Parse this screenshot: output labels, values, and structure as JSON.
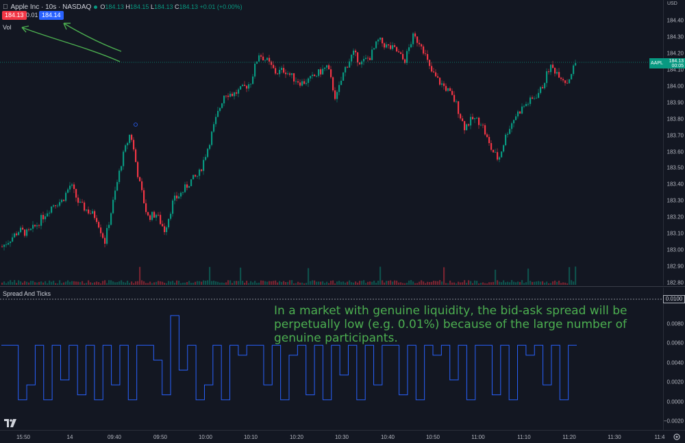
{
  "legend": {
    "symbol": "Apple Inc · 10s · NASDAQ",
    "open_label": "O",
    "open": "184.13",
    "high_label": "H",
    "high": "184.15",
    "low_label": "L",
    "low": "184.13",
    "close_label": "C",
    "close": "184.13",
    "change": "+0.01 (+0.00%)"
  },
  "bid_price": "184.13",
  "ask_price": "184.14",
  "spread_value": "0.01",
  "volume_label": "Vol",
  "indicator_title": "Spread And Ticks",
  "currency": "USD",
  "price_tag": {
    "symbol": "AAPL",
    "price": "184.13",
    "countdown": "00:05"
  },
  "spread_tag": "0.0100",
  "annotation": "In a market with genuine liquidity, the bid-ask spread will be perpetually low (e.g. 0.01%) because of the large number of genuine participants.",
  "price_axis": [
    "184.40",
    "184.30",
    "184.20",
    "184.10",
    "184.00",
    "183.90",
    "183.80",
    "183.70",
    "183.60",
    "183.50",
    "183.40",
    "183.30",
    "183.20",
    "183.10",
    "183.00",
    "182.90",
    "182.80"
  ],
  "spread_axis": [
    "0.0100",
    "0.0080",
    "0.0060",
    "0.0040",
    "0.0020",
    "0.0000",
    "−0.0020"
  ],
  "time_axis": [
    "15:50",
    "14",
    "09:40",
    "09:50",
    "10:00",
    "10:10",
    "10:20",
    "10:30",
    "10:40",
    "10:50",
    "11:00",
    "11:10",
    "11:20",
    "11:30",
    "11:4"
  ],
  "colors": {
    "up": "#089981",
    "down": "#f23645",
    "spread_line": "#2962ff",
    "annotation": "#4caf50",
    "arrow": "#4caf50",
    "background": "#131722"
  },
  "chart_data": {
    "type": "candlestick",
    "ylim": [
      182.8,
      184.4
    ],
    "price_path": [
      183.02,
      183.07,
      183.12,
      183.1,
      183.15,
      183.22,
      183.28,
      183.3,
      183.4,
      183.28,
      183.24,
      183.2,
      183.05,
      183.3,
      183.55,
      183.72,
      183.42,
      183.2,
      183.22,
      183.12,
      183.3,
      183.35,
      183.42,
      183.46,
      183.62,
      183.8,
      183.96,
      183.95,
      183.98,
      184.02,
      184.2,
      184.15,
      184.08,
      184.1,
      184.05,
      184.02,
      184.04,
      184.08,
      184.12,
      183.92,
      184.1,
      184.2,
      184.14,
      184.18,
      184.28,
      184.24,
      184.22,
      184.15,
      184.3,
      184.26,
      184.1,
      184.03,
      183.98,
      183.9,
      183.75,
      183.8,
      183.78,
      183.63,
      183.55,
      183.72,
      183.82,
      183.88,
      183.92,
      183.98,
      184.12,
      184.08,
      184.02,
      184.14
    ],
    "spread_levels": [
      0.0055,
      0.0055,
      0.0,
      0.0015,
      0.0055,
      0.0,
      0.0055,
      0.002,
      0.0055,
      0.0005,
      0.0055,
      0.0,
      0.0055,
      0.0015,
      0.0055,
      0.0,
      0.0055,
      0.0055,
      0.004,
      0.0005,
      0.0085,
      0.003,
      0.0055,
      0.0,
      0.0015,
      0.0055,
      0.0,
      0.0055,
      0.0045,
      0.0055,
      0.0055,
      0.0015,
      0.0055,
      0.0,
      0.0045,
      0.0055,
      0.0005,
      0.0055,
      0.0,
      0.0055,
      0.0025,
      0.0055,
      0.0,
      0.0055,
      0.0015,
      0.0055,
      0.0055,
      0.0005,
      0.0055,
      0.0,
      0.0055,
      0.0045,
      0.0055,
      0.002,
      0.0055,
      0.0,
      0.0055,
      0.0055,
      0.0005,
      0.0055,
      0.0,
      0.0055,
      0.0045,
      0.0055,
      0.0015,
      0.0055,
      0.0,
      0.0055
    ],
    "spread_ylim": [
      -0.0025,
      0.0105
    ]
  }
}
